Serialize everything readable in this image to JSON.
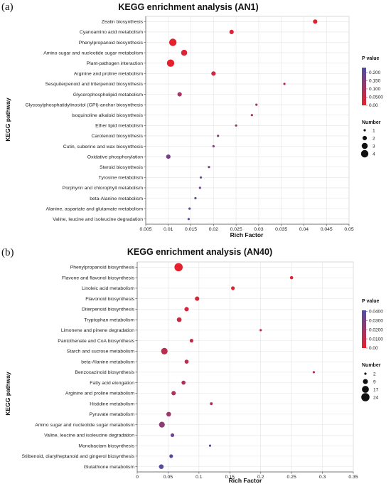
{
  "chart_data": [
    {
      "type": "scatter",
      "panel_label": "(a)",
      "title": "KEGG enrichment analysis (AN1)",
      "xlabel": "Rich Factor",
      "ylabel": "KEGG pathway",
      "xlim": [
        0.005,
        0.05
      ],
      "xticks": [
        "0.005",
        "0.01",
        "0.015",
        "0.02",
        "0.025",
        "0.03",
        "0.035",
        "0.04",
        "0.045",
        "0.05"
      ],
      "grid": true,
      "legend_placement": "right",
      "color_legend": {
        "title": "P value",
        "ticks": [
          "0.200",
          "0.150",
          "0.100",
          "0.0500",
          "0.00"
        ],
        "tick_values": [
          0.2,
          0.15,
          0.1,
          0.05,
          0.0
        ],
        "min": 0.0,
        "max": 0.23,
        "low_color": "#e8202a",
        "high_color": "#4f4ea5"
      },
      "size_legend": {
        "title": "Number",
        "labels": [
          "1",
          "2",
          "3",
          "4"
        ],
        "values": [
          1,
          2,
          3,
          4
        ]
      },
      "points": [
        {
          "pathway": "Zeatin biosynthesis",
          "rich_factor": 0.0425,
          "p_value": 0.01,
          "number": 2
        },
        {
          "pathway": "Cyanoamino acid metabolism",
          "rich_factor": 0.024,
          "p_value": 0.02,
          "number": 2
        },
        {
          "pathway": "Phenylpropanoid biosynthesis",
          "rich_factor": 0.011,
          "p_value": 0.005,
          "number": 4
        },
        {
          "pathway": "Amino sugar and nucleotide sugar metabolism",
          "rich_factor": 0.0135,
          "p_value": 0.02,
          "number": 3
        },
        {
          "pathway": "Plant-pathogen interaction",
          "rich_factor": 0.0105,
          "p_value": 0.008,
          "number": 4
        },
        {
          "pathway": "Arginine and proline metabolism",
          "rich_factor": 0.02,
          "p_value": 0.04,
          "number": 2
        },
        {
          "pathway": "Sesquiterpenoid and triterpenoid biosynthesis",
          "rich_factor": 0.0357,
          "p_value": 0.06,
          "number": 1
        },
        {
          "pathway": "Glycerophospholipid metabolism",
          "rich_factor": 0.0125,
          "p_value": 0.11,
          "number": 2
        },
        {
          "pathway": "Glycosylphosphatidylinositol (GPI)-anchor biosynthesis",
          "rich_factor": 0.0295,
          "p_value": 0.1,
          "number": 1
        },
        {
          "pathway": "Isoquinoline alkaloid biosynthesis",
          "rich_factor": 0.0285,
          "p_value": 0.1,
          "number": 1
        },
        {
          "pathway": "Ether lipid metabolism",
          "rich_factor": 0.025,
          "p_value": 0.12,
          "number": 1
        },
        {
          "pathway": "Carotenoid biosynthesis",
          "rich_factor": 0.021,
          "p_value": 0.14,
          "number": 1
        },
        {
          "pathway": "Cutin, suberine and wax biosynthesis",
          "rich_factor": 0.02,
          "p_value": 0.15,
          "number": 1
        },
        {
          "pathway": "Oxidative phosphorylation",
          "rich_factor": 0.01,
          "p_value": 0.17,
          "number": 2
        },
        {
          "pathway": "Steroid biosynthesis",
          "rich_factor": 0.019,
          "p_value": 0.16,
          "number": 1
        },
        {
          "pathway": "Tyrosine metabolism",
          "rich_factor": 0.0172,
          "p_value": 0.18,
          "number": 1
        },
        {
          "pathway": "Porphyrin and chlorophyll metabolism",
          "rich_factor": 0.017,
          "p_value": 0.18,
          "number": 1
        },
        {
          "pathway": "beta-Alanine metabolism",
          "rich_factor": 0.016,
          "p_value": 0.19,
          "number": 1
        },
        {
          "pathway": "Alanine, aspartate and glutamate metabolism",
          "rich_factor": 0.0147,
          "p_value": 0.2,
          "number": 1
        },
        {
          "pathway": "Valine, leucine and isoleucine degradation",
          "rich_factor": 0.0145,
          "p_value": 0.21,
          "number": 1
        }
      ]
    },
    {
      "type": "scatter",
      "panel_label": "(b)",
      "title": "KEGG enrichment analysis (AN40)",
      "xlabel": "Rich Factor",
      "ylabel": "KEGG pathway",
      "xlim": [
        0,
        0.35
      ],
      "xticks": [
        "0",
        "0.05",
        "0.1",
        "0.15",
        "0.2",
        "0.25",
        "0.3",
        "0.35"
      ],
      "grid": true,
      "legend_placement": "right",
      "color_legend": {
        "title": "P value",
        "ticks": [
          "0.0400",
          "0.0300",
          "0.0200",
          "0.0100",
          "0.00"
        ],
        "tick_values": [
          0.04,
          0.03,
          0.02,
          0.01,
          0.0
        ],
        "min": 0.0,
        "max": 0.041,
        "low_color": "#e8202a",
        "high_color": "#4f4ea5"
      },
      "size_legend": {
        "title": "Number",
        "labels": [
          "2",
          "9",
          "17",
          "24"
        ],
        "values": [
          2,
          9,
          17,
          24
        ]
      },
      "points": [
        {
          "pathway": "Phenylpropanoid biosynthesis",
          "rich_factor": 0.067,
          "p_value": 0.001,
          "number": 24
        },
        {
          "pathway": "Flavone and flavonol biosynthesis",
          "rich_factor": 0.25,
          "p_value": 0.002,
          "number": 4
        },
        {
          "pathway": "Linoleic acid metabolism",
          "rich_factor": 0.155,
          "p_value": 0.003,
          "number": 5
        },
        {
          "pathway": "Flavonoid biosynthesis",
          "rich_factor": 0.097,
          "p_value": 0.004,
          "number": 7
        },
        {
          "pathway": "Diterpenoid biosynthesis",
          "rich_factor": 0.08,
          "p_value": 0.006,
          "number": 7
        },
        {
          "pathway": "Tryptophan metabolism",
          "rich_factor": 0.068,
          "p_value": 0.008,
          "number": 8
        },
        {
          "pathway": "Limonene and pinene degradation",
          "rich_factor": 0.2,
          "p_value": 0.008,
          "number": 2
        },
        {
          "pathway": "Pantothenate and CoA biosynthesis",
          "rich_factor": 0.088,
          "p_value": 0.01,
          "number": 5
        },
        {
          "pathway": "Starch and sucrose metabolism",
          "rich_factor": 0.044,
          "p_value": 0.012,
          "number": 15
        },
        {
          "pathway": "beta-Alanine metabolism",
          "rich_factor": 0.08,
          "p_value": 0.013,
          "number": 6
        },
        {
          "pathway": "Benzoxazinoid biosynthesis",
          "rich_factor": 0.286,
          "p_value": 0.014,
          "number": 2
        },
        {
          "pathway": "Fatty acid elongation",
          "rich_factor": 0.075,
          "p_value": 0.015,
          "number": 6
        },
        {
          "pathway": "Arginine and proline metabolism",
          "rich_factor": 0.059,
          "p_value": 0.017,
          "number": 7
        },
        {
          "pathway": "Histidine metabolism",
          "rich_factor": 0.12,
          "p_value": 0.019,
          "number": 3
        },
        {
          "pathway": "Pyruvate metabolism",
          "rich_factor": 0.051,
          "p_value": 0.021,
          "number": 8
        },
        {
          "pathway": "Amino sugar and nucleotide sugar metabolism",
          "rich_factor": 0.04,
          "p_value": 0.024,
          "number": 12
        },
        {
          "pathway": "Valine, leucine and isoleucine degradation",
          "rich_factor": 0.057,
          "p_value": 0.033,
          "number": 5
        },
        {
          "pathway": "Monobactam biosynthesis",
          "rich_factor": 0.118,
          "p_value": 0.036,
          "number": 2
        },
        {
          "pathway": "Stilbenoid, diarylheptanoid and gingerol biosynthesis",
          "rich_factor": 0.055,
          "p_value": 0.037,
          "number": 5
        },
        {
          "pathway": "Glutathione metabolism",
          "rich_factor": 0.039,
          "p_value": 0.04,
          "number": 8
        }
      ]
    }
  ]
}
